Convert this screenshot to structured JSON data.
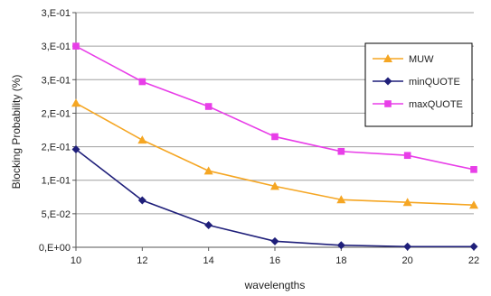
{
  "chart_data": {
    "type": "line",
    "title": "",
    "xlabel": "wavelengths",
    "ylabel": "Blocking Probability (%)",
    "x": [
      10,
      12,
      14,
      16,
      18,
      20,
      22
    ],
    "xlim": [
      10,
      22
    ],
    "ylim": [
      0,
      0.35
    ],
    "y_tick_values": [
      0,
      0.05,
      0.1,
      0.15,
      0.2,
      0.25,
      0.3,
      0.35
    ],
    "y_tick_labels": [
      "0,E+00",
      "5,E-02",
      "1,E-01",
      "2,E-01",
      "2,E-01",
      "3,E-01",
      "3,E-01",
      "3,E-01"
    ],
    "x_tick_labels": [
      "10",
      "12",
      "14",
      "16",
      "18",
      "20",
      "22"
    ],
    "grid": "horizontal",
    "legend_position": "top-right",
    "series": [
      {
        "name": "MUW",
        "color": "#f5a623",
        "marker": "triangle",
        "values": [
          0.215,
          0.16,
          0.114,
          0.091,
          0.071,
          0.067,
          0.063
        ]
      },
      {
        "name": "minQUOTE",
        "color": "#1f1f7a",
        "marker": "diamond",
        "values": [
          0.146,
          0.07,
          0.033,
          0.009,
          0.003,
          0.001,
          0.001
        ]
      },
      {
        "name": "maxQUOTE",
        "color": "#e83ee8",
        "marker": "square",
        "values": [
          0.3,
          0.247,
          0.21,
          0.165,
          0.143,
          0.137,
          0.116
        ]
      }
    ]
  }
}
